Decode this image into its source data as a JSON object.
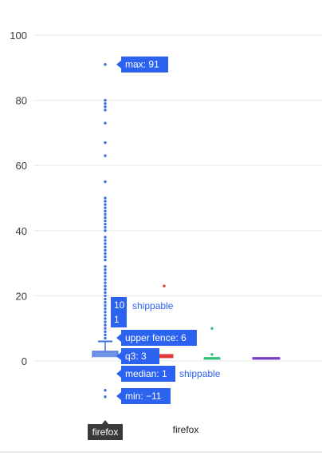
{
  "chart_data": {
    "type": "box",
    "title": "",
    "xlabel": "",
    "ylabel": "",
    "ylim": [
      -20,
      100
    ],
    "yticks": [
      0,
      20,
      40,
      60,
      80,
      100
    ],
    "categories": [
      "firefox",
      "",
      "firefox",
      ""
    ],
    "colors": {
      "blue": "#3b6fe0",
      "red": "#e03a3a",
      "green": "#33c27a",
      "purple": "#7b3fc6"
    },
    "boxes": [
      {
        "category": "firefox",
        "color": "#3b6fe0",
        "min": -11,
        "q1": 1,
        "median": 1,
        "q3": 3,
        "upper_fence": 6,
        "max": 91,
        "outliers": [
          -11,
          -9,
          7,
          8,
          9,
          10,
          11,
          12,
          13,
          14,
          15,
          16,
          17,
          18,
          19,
          20,
          21,
          22,
          23,
          24,
          25,
          26,
          27,
          28,
          29,
          31,
          32,
          33,
          34,
          35,
          36,
          37,
          38,
          40,
          41,
          42,
          43,
          44,
          45,
          46,
          47,
          48,
          49,
          50,
          55,
          63,
          67,
          73,
          77,
          78,
          79,
          80,
          91
        ]
      },
      {
        "category": "",
        "color": "#e03a3a",
        "q1": 1,
        "median": 1.5,
        "q3": 2,
        "outliers": [
          23
        ]
      },
      {
        "category": "firefox",
        "color": "#33c27a",
        "q1": 1,
        "median": 1,
        "q3": 1,
        "outliers": [
          2,
          10
        ]
      },
      {
        "category": "",
        "color": "#7b3fc6",
        "q1": 1,
        "median": 1,
        "q3": 1,
        "outliers": []
      }
    ],
    "tooltips": {
      "max": "max: 91",
      "upper_fence": "upper fence: 6",
      "q3": "q3: 3",
      "median": "median: 1",
      "min": "min: −11",
      "count_line1": "10",
      "count_line2": "1"
    },
    "tooltip_side_labels": {
      "count": "shippable",
      "median": "shippable"
    },
    "hover_category_label": "firefox"
  }
}
